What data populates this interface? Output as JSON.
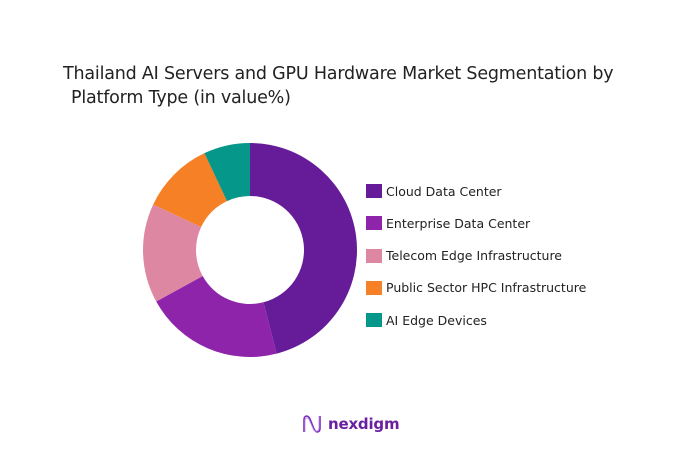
{
  "title": {
    "line1": "Thailand AI Servers and GPU Hardware Market Segmentation by",
    "line2": "Platform Type (in value%)"
  },
  "chart_data": {
    "type": "pie",
    "variant": "donut",
    "title": "Thailand AI Servers and GPU Hardware Market Segmentation by Platform Type (in value%)",
    "categories": [
      "Cloud Data Center",
      "Enterprise Data Center",
      "Telecom Edge Infrastructure",
      "Public Sector HPC Infrastructure",
      "AI Edge Devices"
    ],
    "values": [
      46,
      21,
      15,
      11,
      7
    ],
    "colors": [
      "#661b98",
      "#8e24aa",
      "#de87a2",
      "#f58025",
      "#05978a"
    ],
    "legend_position": "right",
    "start_angle": "12 o'clock, clockwise",
    "data_labels": false
  },
  "legend": {
    "items": [
      {
        "label": "Cloud Data Center",
        "color": "#661b98"
      },
      {
        "label": "Enterprise Data Center",
        "color": "#8e24aa"
      },
      {
        "label": "Telecom Edge Infrastructure",
        "color": "#de87a2"
      },
      {
        "label": "Public Sector HPC Infrastructure",
        "color": "#f58025"
      },
      {
        "label": "AI Edge Devices",
        "color": "#05978a"
      }
    ]
  },
  "branding": {
    "logo_text": "nexdigm"
  }
}
